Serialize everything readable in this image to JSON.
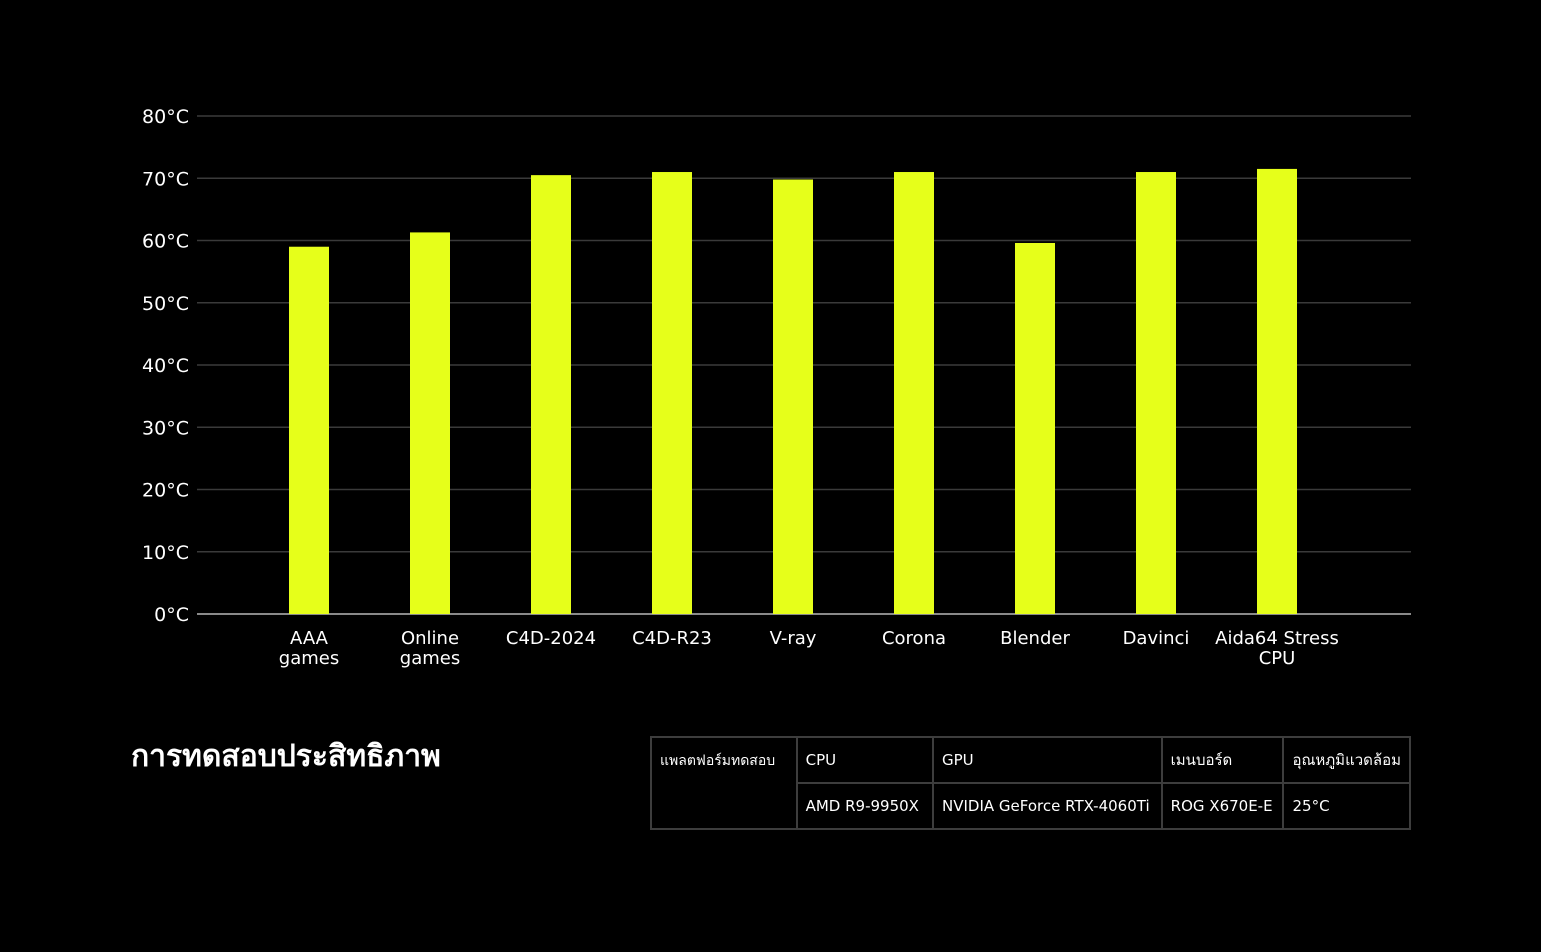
{
  "chart_data": {
    "type": "bar",
    "categories": [
      "AAA\ngames",
      "Online\ngames",
      "C4D-2024",
      "C4D-R23",
      "V-ray",
      "Corona",
      "Blender",
      "Davinci",
      "Aida64 Stress\nCPU"
    ],
    "values": [
      59,
      61.3,
      70.5,
      71,
      69.8,
      71,
      59.6,
      71,
      71.5
    ],
    "yticks": [
      "0°C",
      "10°C",
      "20°C",
      "30°C",
      "40°C",
      "50°C",
      "60°C",
      "70°C",
      "80°C"
    ],
    "ylim": [
      0,
      80
    ],
    "grid": true,
    "title": "",
    "xlabel": "",
    "ylabel": "",
    "bar_color": "#e6ff1a",
    "grid_color": "#3a3a3a"
  },
  "section_title": "การทดสอบประสิทธิภาพ",
  "spec_table": {
    "platform_label": "แพลตฟอร์มทดสอบ",
    "headers": [
      "CPU",
      "GPU",
      "เมนบอร์ด",
      "อุณหภูมิแวดล้อม"
    ],
    "values": [
      "AMD R9-9950X",
      "NVIDIA GeForce RTX-4060Ti",
      "ROG X670E-E",
      "25°C"
    ]
  }
}
